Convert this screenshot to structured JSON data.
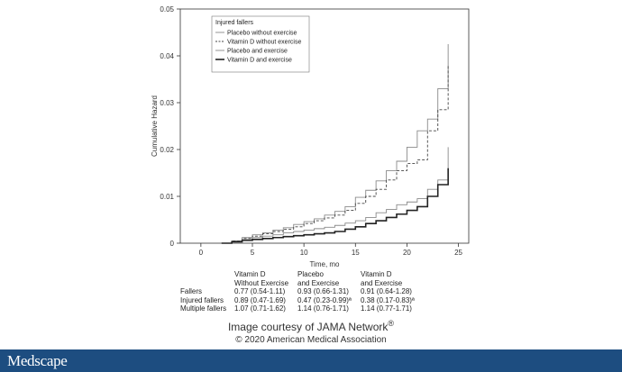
{
  "chart_data": {
    "type": "line",
    "step": true,
    "ylabel": "Cumulative Hazard",
    "xlabel": "Time, mo",
    "xlim": [
      -2,
      26
    ],
    "ylim": [
      0,
      0.05
    ],
    "xticks": [
      0,
      5,
      10,
      15,
      20,
      25
    ],
    "yticks": [
      0,
      0.01,
      0.02,
      0.03,
      0.04,
      0.05
    ],
    "ytick_labels": [
      "0",
      "0.01",
      "0.02",
      "0.03",
      "0.04",
      "0.05"
    ],
    "grid": false,
    "legend_title": "Injured fallers",
    "legend_position": "top-left",
    "series": [
      {
        "name": "Placebo without exercise",
        "style": "thin-gray-solid",
        "x": [
          2,
          3,
          4,
          5,
          6,
          7,
          8,
          9,
          10,
          11,
          12,
          13,
          14,
          15,
          16,
          17,
          18,
          19,
          20,
          21,
          22,
          23,
          24,
          24
        ],
        "y": [
          0,
          0.0005,
          0.0012,
          0.0018,
          0.0022,
          0.0028,
          0.0033,
          0.004,
          0.0046,
          0.0052,
          0.006,
          0.0068,
          0.0078,
          0.0098,
          0.0113,
          0.0133,
          0.0155,
          0.0175,
          0.0205,
          0.024,
          0.0265,
          0.033,
          0.036,
          0.0425
        ]
      },
      {
        "name": "Vitamin D without exercise",
        "style": "dark-dashed",
        "x": [
          2,
          3,
          4,
          5,
          6,
          7,
          8,
          9,
          10,
          11,
          12,
          13,
          14,
          15,
          16,
          17,
          18,
          19,
          20,
          21,
          22,
          23,
          24,
          24
        ],
        "y": [
          0,
          0.0005,
          0.001,
          0.0015,
          0.002,
          0.0025,
          0.003,
          0.0035,
          0.0042,
          0.0048,
          0.0054,
          0.006,
          0.007,
          0.0085,
          0.01,
          0.0115,
          0.0135,
          0.0155,
          0.017,
          0.0178,
          0.024,
          0.0285,
          0.0295,
          0.038
        ]
      },
      {
        "name": "Placebo and exercise",
        "style": "thin-gray-solid",
        "x": [
          2,
          3,
          4,
          5,
          6,
          7,
          8,
          9,
          10,
          11,
          12,
          13,
          14,
          15,
          16,
          17,
          18,
          19,
          20,
          21,
          22,
          23,
          24,
          24
        ],
        "y": [
          0,
          0.0004,
          0.0008,
          0.0012,
          0.0015,
          0.0018,
          0.0022,
          0.0025,
          0.0028,
          0.0031,
          0.0034,
          0.0038,
          0.0043,
          0.0048,
          0.0055,
          0.0065,
          0.0072,
          0.0082,
          0.0088,
          0.0095,
          0.0115,
          0.0135,
          0.016,
          0.0205
        ]
      },
      {
        "name": "Vitamin D and exercise",
        "style": "dark-thick-solid",
        "x": [
          2,
          3,
          4,
          5,
          6,
          7,
          8,
          9,
          10,
          11,
          12,
          13,
          14,
          15,
          16,
          17,
          18,
          19,
          20,
          21,
          22,
          23,
          24,
          24
        ],
        "y": [
          0,
          0.0003,
          0.0006,
          0.0008,
          0.001,
          0.0012,
          0.0014,
          0.0016,
          0.0018,
          0.002,
          0.0022,
          0.0025,
          0.003,
          0.0035,
          0.0042,
          0.0048,
          0.0055,
          0.0062,
          0.007,
          0.0078,
          0.01,
          0.0125,
          0.0155,
          0.016
        ]
      }
    ]
  },
  "stats_table": {
    "header_row1": [
      "",
      "Vitamin D",
      "Placebo",
      "Vitamin D"
    ],
    "header_row2": [
      "",
      "Without Exercise",
      "and Exercise",
      "and Exercise"
    ],
    "rows": [
      [
        "Fallers",
        "0.77 (0.54-1.11)",
        "0.93 (0.66-1.31)",
        "0.91 (0.64-1.28)"
      ],
      [
        "Injured fallers",
        "0.89 (0.47-1.69)",
        "0.47 (0.23-0.99)ª",
        "0.38 (0.17-0.83)ª"
      ],
      [
        "Multiple fallers",
        "1.07 (0.71-1.62)",
        "1.14 (0.76-1.71)",
        "1.14 (0.77-1.71)"
      ]
    ]
  },
  "credit": {
    "line": "Image courtesy of JAMA Network",
    "mark": "®",
    "copyright": "© 2020 American Medical Association"
  },
  "footer": {
    "brand": "Medscape",
    "bar_color": "#1d4d80"
  }
}
